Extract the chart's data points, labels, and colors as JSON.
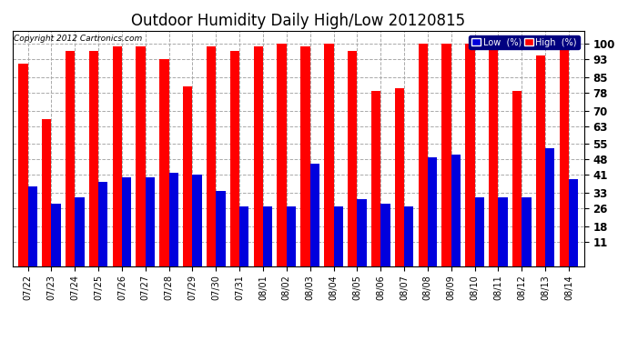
{
  "title": "Outdoor Humidity Daily High/Low 20120815",
  "copyright": "Copyright 2012 Cartronics.com",
  "categories": [
    "07/22",
    "07/23",
    "07/24",
    "07/25",
    "07/26",
    "07/27",
    "07/28",
    "07/29",
    "07/30",
    "07/31",
    "08/01",
    "08/02",
    "08/03",
    "08/04",
    "08/05",
    "08/06",
    "08/07",
    "08/08",
    "08/09",
    "08/10",
    "08/11",
    "08/12",
    "08/13",
    "08/14"
  ],
  "high": [
    91,
    66,
    97,
    97,
    99,
    99,
    93,
    81,
    99,
    97,
    99,
    100,
    99,
    100,
    97,
    79,
    80,
    100,
    100,
    100,
    100,
    79,
    95,
    100
  ],
  "low": [
    36,
    28,
    31,
    38,
    40,
    40,
    42,
    41,
    34,
    27,
    27,
    27,
    46,
    27,
    30,
    28,
    27,
    49,
    50,
    31,
    31,
    31,
    53,
    39
  ],
  "high_color": "#ff0000",
  "low_color": "#0000dd",
  "background_color": "#ffffff",
  "plot_background": "#ffffff",
  "grid_color": "#aaaaaa",
  "title_fontsize": 12,
  "yticks": [
    11,
    18,
    26,
    33,
    41,
    48,
    55,
    63,
    70,
    78,
    85,
    93,
    100
  ],
  "ylim": [
    0,
    106
  ],
  "legend_low_label": "Low  (%)",
  "legend_high_label": "High  (%)"
}
